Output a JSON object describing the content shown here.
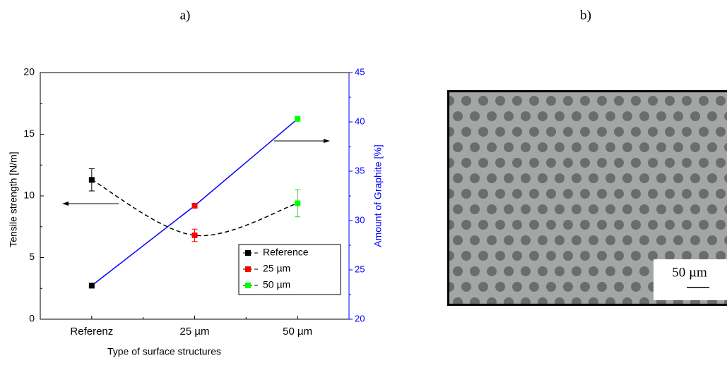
{
  "panels": {
    "a": "a)",
    "b": "b)"
  },
  "chart_data": {
    "type": "line",
    "categories": [
      "Referenz",
      "25 µm",
      "50 µm"
    ],
    "xlabel": "Type of surface structures",
    "ylabel": "Tensile strength [N/m]",
    "y2label": "Amount of Graphite [%]",
    "ylim": [
      0,
      20
    ],
    "yticks": [
      0,
      5,
      10,
      15,
      20
    ],
    "y2lim": [
      20,
      45
    ],
    "y2ticks": [
      20,
      25,
      30,
      35,
      40,
      45
    ],
    "legend": [
      "Reference",
      "25 µm",
      "50 µm"
    ],
    "colors": [
      "#000000",
      "#ff0000",
      "#00ff00"
    ],
    "series": [
      {
        "values": [
          11.3,
          6.8,
          9.4
        ],
        "errors": [
          0.9,
          0.5,
          1.1
        ],
        "color": "#000000",
        "dashed": true
      },
      {
        "values": [
          23.4,
          31.5,
          40.3
        ],
        "axis": "y2",
        "color": "#0000ff"
      }
    ]
  },
  "image": {
    "scale_label": "50 µm"
  }
}
